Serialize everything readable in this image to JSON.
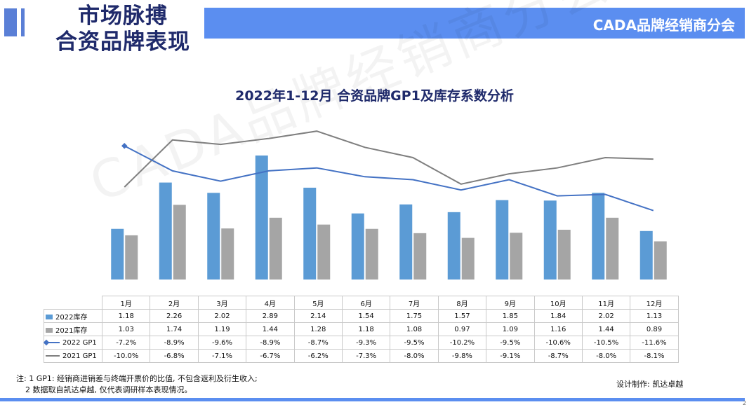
{
  "header": {
    "title_line1": "市场脉搏",
    "title_line2": "合资品牌表现",
    "banner": "CADA品牌经销商分会"
  },
  "watermark": "CADA品牌经销商分会",
  "colors": {
    "bar2022": "#5b9bd5",
    "bar2021": "#a5a5a5",
    "line2022": "#4472c4",
    "line2021": "#7f7f7f",
    "accent": "#5b8ef0"
  },
  "chart_data": {
    "type": "bar+line",
    "title": "2022年1-12月 合资品牌GP1及库存系数分析",
    "categories": [
      "1月",
      "2月",
      "3月",
      "4月",
      "5月",
      "6月",
      "7月",
      "8月",
      "9月",
      "10月",
      "11月",
      "12月"
    ],
    "series": [
      {
        "name": "2022库存",
        "kind": "bar",
        "values": [
          1.18,
          2.26,
          2.02,
          2.89,
          2.14,
          1.54,
          1.75,
          1.57,
          1.85,
          1.84,
          2.02,
          1.13
        ],
        "labels": [
          "1.18",
          "2.26",
          "2.02",
          "2.89",
          "2.14",
          "1.54",
          "1.75",
          "1.57",
          "1.85",
          "1.84",
          "2.02",
          "1.13"
        ]
      },
      {
        "name": "2021库存",
        "kind": "bar",
        "values": [
          1.03,
          1.74,
          1.19,
          1.44,
          1.28,
          1.18,
          1.08,
          0.97,
          1.09,
          1.16,
          1.44,
          0.89
        ],
        "labels": [
          "1.03",
          "1.74",
          "1.19",
          "1.44",
          "1.28",
          "1.18",
          "1.08",
          "0.97",
          "1.09",
          "1.16",
          "1.44",
          "0.89"
        ]
      },
      {
        "name": "2022 GP1",
        "kind": "line",
        "values": [
          -7.2,
          -8.9,
          -9.6,
          -8.9,
          -8.7,
          -9.3,
          -9.5,
          -10.2,
          -9.5,
          -10.6,
          -10.5,
          -11.6
        ],
        "labels": [
          "-7.2%",
          "-8.9%",
          "-9.6%",
          "-8.9%",
          "-8.7%",
          "-9.3%",
          "-9.5%",
          "-10.2%",
          "-9.5%",
          "-10.6%",
          "-10.5%",
          "-11.6%"
        ]
      },
      {
        "name": "2021 GP1",
        "kind": "line",
        "values": [
          -10.0,
          -6.8,
          -7.1,
          -6.7,
          -6.2,
          -7.3,
          -8.0,
          -9.8,
          -9.1,
          -8.7,
          -8.0,
          -8.1
        ],
        "labels": [
          "-10.0%",
          "-6.8%",
          "-7.1%",
          "-6.7%",
          "-6.2%",
          "-7.3%",
          "-8.0%",
          "-9.8%",
          "-9.1%",
          "-8.7%",
          "-8.0%",
          "-8.1%"
        ]
      }
    ],
    "bar_axis": [
      0,
      3.2
    ],
    "line_axis": [
      -14,
      -5
    ],
    "legend": "bottom-table"
  },
  "footnotes": {
    "line1": "注: 1 GP1: 经销商进销差与终端开票价的比值, 不包含返利及衍生收入;",
    "line2": "2 数据取自凯达卓越, 仅代表调研样本表现情况。"
  },
  "credit": "设计制作: 凯达卓越",
  "page_number": "2"
}
